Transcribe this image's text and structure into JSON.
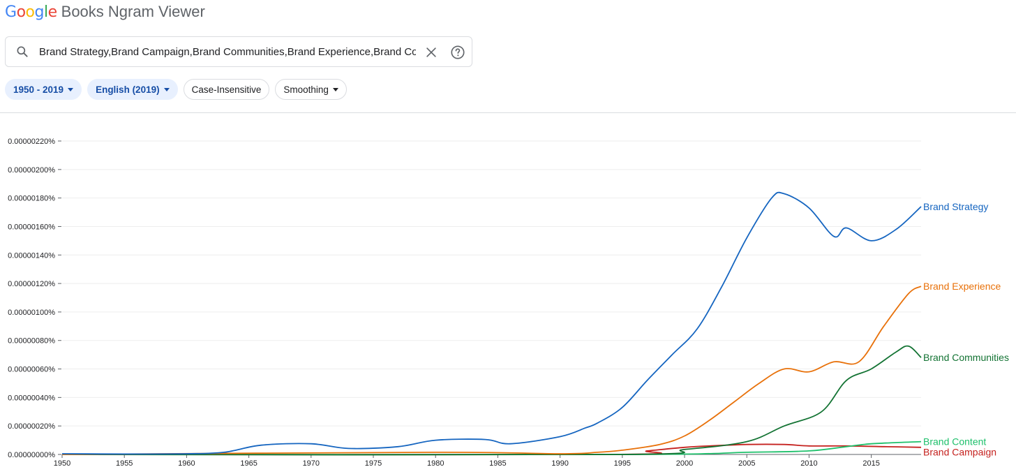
{
  "header": {
    "logo_letters": [
      {
        "ch": "G",
        "color": "#4285F4"
      },
      {
        "ch": "o",
        "color": "#EA4335"
      },
      {
        "ch": "o",
        "color": "#FBBC05"
      },
      {
        "ch": "g",
        "color": "#4285F4"
      },
      {
        "ch": "l",
        "color": "#34A853"
      },
      {
        "ch": "e",
        "color": "#EA4335"
      }
    ],
    "app_title": "Books Ngram Viewer"
  },
  "search": {
    "value": "Brand Strategy,Brand Campaign,Brand Communities,Brand Experience,Brand Cont",
    "icon": "search-icon",
    "clear_icon": "close-icon",
    "help_icon": "help-icon"
  },
  "filters": {
    "year_range": "1950 - 2019",
    "corpus": "English (2019)",
    "case": "Case-Insensitive",
    "smoothing": "Smoothing"
  },
  "colors": {
    "accent": "#174ea6",
    "chip_active_bg": "#e8f0fe"
  },
  "chart_data": {
    "type": "line",
    "title": "",
    "xlabel": "",
    "ylabel": "",
    "xlim": [
      1950,
      2019
    ],
    "ylim": [
      0,
      2.2e-06
    ],
    "x_ticks": [
      "1950",
      "1955",
      "1960",
      "1965",
      "1970",
      "1975",
      "1980",
      "1985",
      "1990",
      "1995",
      "2000",
      "2005",
      "2010",
      "2015"
    ],
    "y_ticks": [
      "0.00000000%",
      "0.00000020%",
      "0.00000040%",
      "0.00000060%",
      "0.00000080%",
      "0.00000100%",
      "0.00000120%",
      "0.00000140%",
      "0.00000160%",
      "0.00000180%",
      "0.00000200%",
      "0.00000220%"
    ],
    "y_tick_values": [
      0,
      2e-07,
      4e-07,
      6e-07,
      8e-07,
      1e-06,
      1.2e-06,
      1.4e-06,
      1.6e-06,
      1.8e-06,
      2e-06,
      2.2e-06
    ],
    "grid": true,
    "legend": "labels at line ends (right)",
    "series": [
      {
        "name": "Brand Strategy",
        "color": "#1565c0",
        "points": [
          [
            1950,
            5e-09
          ],
          [
            1955,
            3e-09
          ],
          [
            1960,
            5e-09
          ],
          [
            1963,
            1.5e-08
          ],
          [
            1966,
            6.5e-08
          ],
          [
            1970,
            7.5e-08
          ],
          [
            1973,
            4.2e-08
          ],
          [
            1977,
            5.5e-08
          ],
          [
            1980,
            1e-07
          ],
          [
            1984,
            1.05e-07
          ],
          [
            1986,
            7.5e-08
          ],
          [
            1990,
            1.25e-07
          ],
          [
            1992,
            1.85e-07
          ],
          [
            1993,
            2.2e-07
          ],
          [
            1995,
            3.3e-07
          ],
          [
            1997,
            5.2e-07
          ],
          [
            1999,
            7e-07
          ],
          [
            2001,
            8.8e-07
          ],
          [
            2003,
            1.18e-06
          ],
          [
            2005,
            1.52e-06
          ],
          [
            2007,
            1.8e-06
          ],
          [
            2008,
            1.83e-06
          ],
          [
            2010,
            1.73e-06
          ],
          [
            2012,
            1.53e-06
          ],
          [
            2013,
            1.59e-06
          ],
          [
            2015,
            1.5e-06
          ],
          [
            2017,
            1.58e-06
          ],
          [
            2019,
            1.74e-06
          ]
        ]
      },
      {
        "name": "Brand Experience",
        "color": "#e8710a",
        "points": [
          [
            1950,
            0.0
          ],
          [
            1980,
            1.5e-08
          ],
          [
            1990,
            5e-09
          ],
          [
            1993,
            1.5e-08
          ],
          [
            1995,
            3e-08
          ],
          [
            1998,
            7e-08
          ],
          [
            2000,
            1.3e-07
          ],
          [
            2002,
            2.4e-07
          ],
          [
            2004,
            3.7e-07
          ],
          [
            2006,
            5e-07
          ],
          [
            2008,
            6e-07
          ],
          [
            2010,
            5.8e-07
          ],
          [
            2012,
            6.5e-07
          ],
          [
            2014,
            6.5e-07
          ],
          [
            2016,
            9e-07
          ],
          [
            2018,
            1.13e-06
          ],
          [
            2019,
            1.18e-06
          ]
        ]
      },
      {
        "name": "Brand Communities",
        "color": "#137333",
        "points": [
          [
            1950,
            0.0
          ],
          [
            1995,
            0.0
          ],
          [
            2000,
            3.5e-08
          ],
          [
            2005,
            9e-08
          ],
          [
            2008,
            2e-07
          ],
          [
            2011,
            3e-07
          ],
          [
            2013,
            5.2e-07
          ],
          [
            2015,
            6e-07
          ],
          [
            2017,
            7.2e-07
          ],
          [
            2018,
            7.6e-07
          ],
          [
            2019,
            6.8e-07
          ]
        ]
      },
      {
        "name": "Brand Content",
        "color": "#1ec06b",
        "points": [
          [
            1950,
            0.0
          ],
          [
            1995,
            0.0
          ],
          [
            2005,
            1.5e-08
          ],
          [
            2010,
            2.5e-08
          ],
          [
            2013,
            5.5e-08
          ],
          [
            2015,
            7.5e-08
          ],
          [
            2019,
            9e-08
          ]
        ]
      },
      {
        "name": "Brand Campaign",
        "color": "#c5221f",
        "points": [
          [
            1950,
            0.0
          ],
          [
            1994,
            0.0
          ],
          [
            1997,
            2.5e-08
          ],
          [
            2000,
            5e-08
          ],
          [
            2002,
            6e-08
          ],
          [
            2005,
            7e-08
          ],
          [
            2008,
            7e-08
          ],
          [
            2010,
            6e-08
          ],
          [
            2013,
            6e-08
          ],
          [
            2016,
            5.5e-08
          ],
          [
            2019,
            5e-08
          ]
        ]
      }
    ]
  }
}
